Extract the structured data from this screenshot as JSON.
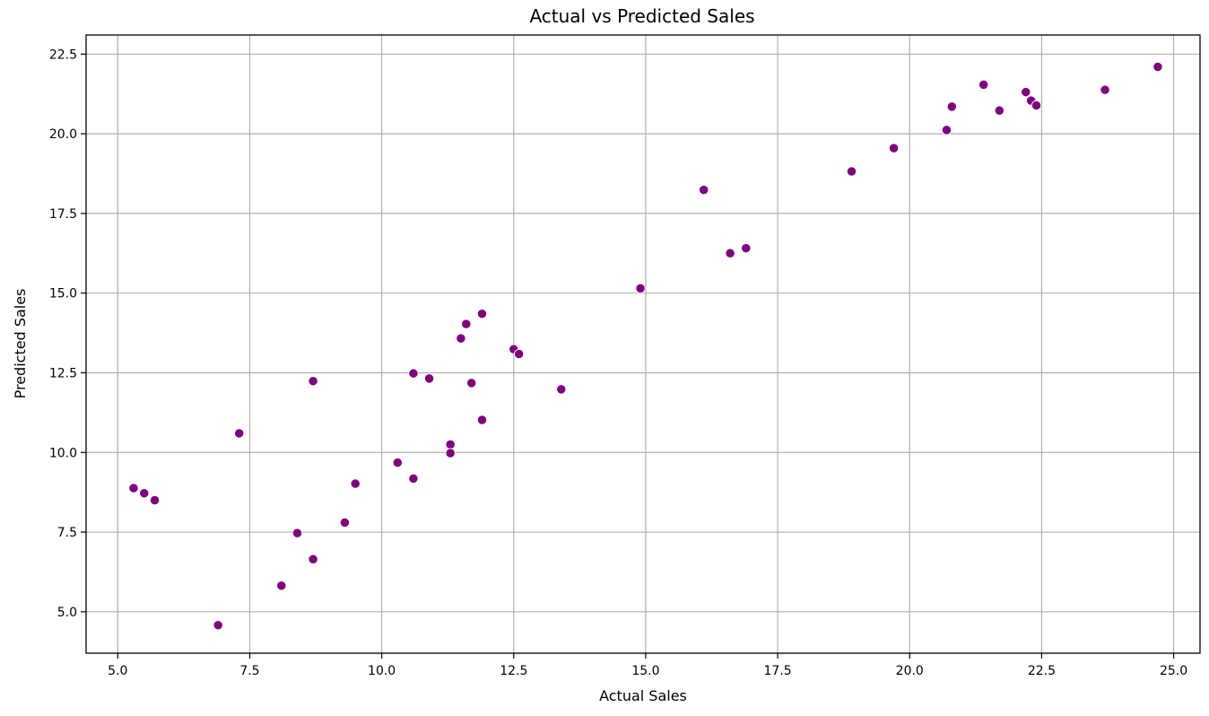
{
  "chart_data": {
    "type": "scatter",
    "title": "Actual vs Predicted Sales",
    "xlabel": "Actual Sales",
    "ylabel": "Predicted Sales",
    "xlim": [
      4.4,
      25.5
    ],
    "ylim": [
      3.7,
      23.1
    ],
    "xticks": [
      5.0,
      7.5,
      10.0,
      12.5,
      15.0,
      17.5,
      20.0,
      22.5,
      25.0
    ],
    "yticks": [
      5.0,
      7.5,
      10.0,
      12.5,
      15.0,
      17.5,
      20.0,
      22.5
    ],
    "xtick_labels": [
      "5.0",
      "7.5",
      "10.0",
      "12.5",
      "15.0",
      "17.5",
      "20.0",
      "22.5",
      "25.0"
    ],
    "ytick_labels": [
      "5.0",
      "7.5",
      "10.0",
      "12.5",
      "15.0",
      "17.5",
      "20.0",
      "22.5"
    ],
    "grid": true,
    "color": "#800080",
    "points": [
      {
        "x": 5.3,
        "y": 8.88
      },
      {
        "x": 5.5,
        "y": 8.72
      },
      {
        "x": 5.7,
        "y": 8.5
      },
      {
        "x": 6.9,
        "y": 4.58
      },
      {
        "x": 7.3,
        "y": 10.6
      },
      {
        "x": 8.1,
        "y": 5.82
      },
      {
        "x": 8.4,
        "y": 7.47
      },
      {
        "x": 8.7,
        "y": 6.65
      },
      {
        "x": 8.7,
        "y": 12.24
      },
      {
        "x": 9.3,
        "y": 7.8
      },
      {
        "x": 9.5,
        "y": 9.02
      },
      {
        "x": 10.3,
        "y": 9.68
      },
      {
        "x": 10.6,
        "y": 9.18
      },
      {
        "x": 10.6,
        "y": 12.48
      },
      {
        "x": 10.9,
        "y": 12.32
      },
      {
        "x": 11.3,
        "y": 10.25
      },
      {
        "x": 11.3,
        "y": 9.98
      },
      {
        "x": 11.5,
        "y": 13.58
      },
      {
        "x": 11.6,
        "y": 14.03
      },
      {
        "x": 11.7,
        "y": 12.18
      },
      {
        "x": 11.9,
        "y": 14.35
      },
      {
        "x": 11.9,
        "y": 11.02
      },
      {
        "x": 12.5,
        "y": 13.24
      },
      {
        "x": 12.6,
        "y": 13.09
      },
      {
        "x": 13.4,
        "y": 11.98
      },
      {
        "x": 14.9,
        "y": 15.15
      },
      {
        "x": 16.1,
        "y": 18.24
      },
      {
        "x": 16.6,
        "y": 16.25
      },
      {
        "x": 16.9,
        "y": 16.41
      },
      {
        "x": 18.9,
        "y": 18.82
      },
      {
        "x": 19.7,
        "y": 19.55
      },
      {
        "x": 20.7,
        "y": 20.12
      },
      {
        "x": 20.8,
        "y": 20.85
      },
      {
        "x": 21.4,
        "y": 21.54
      },
      {
        "x": 21.7,
        "y": 20.73
      },
      {
        "x": 22.2,
        "y": 21.31
      },
      {
        "x": 22.3,
        "y": 21.04
      },
      {
        "x": 22.4,
        "y": 20.89
      },
      {
        "x": 23.7,
        "y": 21.38
      },
      {
        "x": 24.7,
        "y": 22.1
      }
    ]
  }
}
